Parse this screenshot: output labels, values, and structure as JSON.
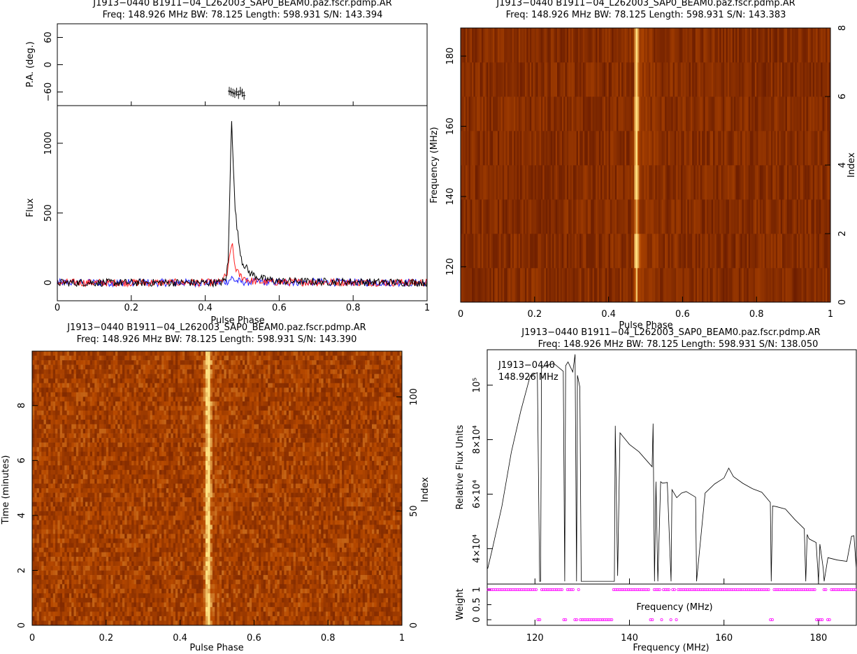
{
  "colors": {
    "axis": "#000000",
    "heat_low": "#3a0000",
    "heat_mid": "#b84a00",
    "heat_high": "#ffe080",
    "stokes_I": "#000000",
    "stokes_L": "#ff2020",
    "stokes_V": "#2020ff",
    "weight": "#ff00ff"
  },
  "chart_data": [
    {
      "id": "profile",
      "type": "line",
      "title": "J1913−0440 B1911−04_L262003_SAP0_BEAM0.paz.fscr.pdmp.AR",
      "subtitle": "Freq: 148.926 MHz BW: 78.125 Length: 598.931 S/N: 143.394",
      "xlabel": "Pulse Phase",
      "xlim": [
        0,
        1
      ],
      "xticks": [
        "0",
        "0.2",
        "0.4",
        "0.6",
        "0.8",
        "1"
      ],
      "pa_panel": {
        "ylabel": "P.A. (deg.)",
        "ylim": [
          -90,
          90
        ],
        "yticks": [
          "60",
          "0",
          "−60"
        ],
        "x": [
          0.465,
          0.47,
          0.475,
          0.48,
          0.485,
          0.49,
          0.495,
          0.5,
          0.505
        ],
        "y": [
          -58,
          -60,
          -62,
          -64,
          -60,
          -66,
          -58,
          -62,
          -68
        ]
      },
      "flux_panel": {
        "ylabel": "Flux",
        "ylim": [
          -130,
          1270
        ],
        "yticks": [
          "0",
          "500",
          "1000"
        ],
        "series": [
          {
            "x": [
              0,
              0.44,
              0.455,
              0.462,
              0.467,
              0.471,
              0.474,
              0.48,
              0.49,
              0.5,
              0.52,
              0.55,
              0.6,
              1
            ],
            "y": [
              0,
              0,
              20,
              150,
              700,
              1210,
              1000,
              550,
              300,
              150,
              70,
              30,
              10,
              0
            ]
          },
          {
            "x": [
              0,
              0.44,
              0.46,
              0.467,
              0.472,
              0.48,
              0.49,
              0.5,
              0.52,
              0.55,
              1
            ],
            "y": [
              0,
              0,
              60,
              200,
              295,
              120,
              60,
              40,
              15,
              5,
              0
            ]
          },
          {
            "x": [
              0,
              0.44,
              0.46,
              0.468,
              0.472,
              0.48,
              0.5,
              1
            ],
            "y": [
              0,
              0,
              10,
              25,
              35,
              15,
              5,
              0
            ]
          }
        ]
      }
    },
    {
      "id": "freq_phase",
      "type": "heatmap",
      "title": "J1913−0440 B1911−04_L262003_SAP0_BEAM0.paz.fscr.pdmp.AR",
      "subtitle": "Freq: 148.926 MHz BW: 78.125 Length: 598.931 S/N: 143.383",
      "xlabel": "Pulse Phase",
      "ylabel": "Frequency (MHz)",
      "y2label": "Index",
      "xlim": [
        0,
        1
      ],
      "xticks": [
        "0",
        "0.2",
        "0.4",
        "0.6",
        "0.8",
        "1"
      ],
      "ylim": [
        109.9,
        188.0
      ],
      "yticks": [
        "120",
        "140",
        "160",
        "180"
      ],
      "y2lim": [
        0,
        8
      ],
      "y2ticks": [
        "0",
        "2",
        "4",
        "6",
        "8"
      ],
      "pulse_center": 0.475,
      "channel_intensity": [
        0.55,
        1.0,
        0.55,
        0.85,
        0.7,
        0.85,
        0.6,
        0.75
      ]
    },
    {
      "id": "time_phase",
      "type": "heatmap",
      "title": "J1913−0440 B1911−04_L262003_SAP0_BEAM0.paz.fscr.pdmp.AR",
      "subtitle": "Freq: 148.926 MHz BW: 78.125 Length: 598.931 S/N: 143.390",
      "xlabel": "Pulse Phase",
      "ylabel": "Time (minutes)",
      "y2label": "Index",
      "xlim": [
        0,
        1
      ],
      "xticks": [
        "0",
        "0.2",
        "0.4",
        "0.6",
        "0.8",
        "1"
      ],
      "ylim": [
        0,
        9.98
      ],
      "yticks": [
        "0",
        "2",
        "4",
        "6",
        "8"
      ],
      "y2lim": [
        0,
        120
      ],
      "y2ticks": [
        "0",
        "50",
        "100"
      ],
      "pulse_center": 0.475
    },
    {
      "id": "bandpass",
      "type": "line",
      "title": "J1913−0440 B1911−04_L262003_SAP0_BEAM0.paz.fscr.pdmp.AR",
      "subtitle": "Freq: 148.926 MHz BW: 78.125 Length: 598.931 S/N: 138.050",
      "annotation": [
        "J1913−0440",
        "148.926 MHz"
      ],
      "xlabel": "Frequency (MHz)",
      "xlim": [
        109.9,
        188.0
      ],
      "xticks": [
        "120",
        "140",
        "160",
        "180"
      ],
      "flux_panel": {
        "ylabel": "Relative Flux Units",
        "ylim": [
          27000,
          113000
        ],
        "yticks": [
          "4×10⁴",
          "6×10⁴",
          "8×10⁴",
          "10⁵"
        ],
        "x": [
          110,
          111,
          113,
          115,
          117,
          119,
          120.5,
          121,
          121.2,
          121.4,
          122,
          124,
          126,
          126.3,
          126.5,
          127,
          128,
          128.5,
          128.8,
          129,
          129.5,
          129.8,
          130,
          130.5,
          136.8,
          137,
          137.5,
          138,
          140,
          142,
          144,
          144.8,
          145,
          145.3,
          145.6,
          146,
          146.6,
          147,
          148,
          148.8,
          149,
          150,
          151,
          152,
          154,
          154.2,
          156,
          158,
          160,
          161,
          162,
          164,
          166,
          168,
          169.8,
          170,
          170.3,
          171,
          173,
          175,
          177,
          177.3,
          177.6,
          178,
          179.5,
          180,
          180.3,
          181,
          181.2,
          182,
          184,
          186,
          187,
          187.5,
          188
        ],
        "y": [
          33000,
          40000,
          55000,
          75000,
          90000,
          103000,
          105000,
          28000,
          28000,
          106000,
          107000,
          108000,
          105000,
          28000,
          107000,
          108000,
          105000,
          112000,
          28000,
          103000,
          100000,
          28000,
          28000,
          28000,
          28000,
          85000,
          30000,
          83000,
          78000,
          75000,
          72000,
          70000,
          86000,
          28000,
          65000,
          28000,
          65000,
          64000,
          64000,
          28000,
          62000,
          59000,
          61000,
          61000,
          59000,
          28000,
          61000,
          63000,
          66000,
          70000,
          66000,
          64000,
          62000,
          60000,
          57000,
          28000,
          56000,
          56000,
          54000,
          51000,
          48000,
          28000,
          45000,
          44000,
          42000,
          28000,
          42000,
          33000,
          28000,
          37000,
          36000,
          36000,
          45000,
          44000,
          33000
        ]
      },
      "weight_panel": {
        "ylabel": "Weight",
        "ylim": [
          0,
          1
        ],
        "yticks": [
          "0",
          "0.5",
          "1"
        ],
        "zero_ranges": [
          [
            120.4,
            121.2
          ],
          [
            125.8,
            126.5
          ],
          [
            128.2,
            129
          ],
          [
            129.5,
            136.5
          ],
          [
            144.4,
            145
          ],
          [
            146.5,
            147
          ],
          [
            148.6,
            149
          ],
          [
            149.6,
            150.1
          ],
          [
            169.6,
            170.4
          ],
          [
            179.3,
            181
          ],
          [
            181.6,
            182.6
          ]
        ]
      }
    }
  ]
}
